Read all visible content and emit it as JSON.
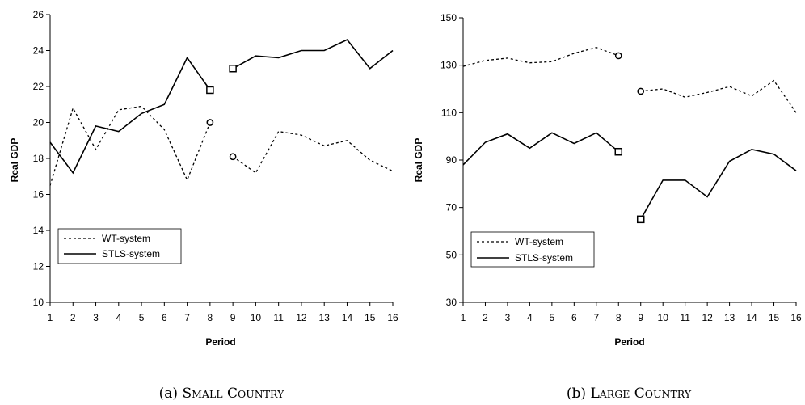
{
  "chart_data": [
    {
      "type": "line",
      "caption": {
        "prefix": "(a) ",
        "word1_first": "S",
        "word1_rest": "MALL",
        "word2_first": "C",
        "word2_rest": "OUNTRY"
      },
      "xlabel": "Period",
      "ylabel": "Real GDP",
      "x": [
        1,
        2,
        3,
        4,
        5,
        6,
        7,
        8,
        9,
        10,
        11,
        12,
        13,
        14,
        15,
        16
      ],
      "xlim": [
        1,
        16
      ],
      "ylim": [
        10,
        26
      ],
      "yticks": [
        10,
        12,
        14,
        16,
        18,
        20,
        22,
        24,
        26
      ],
      "legend": {
        "position": "bottom-left"
      },
      "series": [
        {
          "name": "WT-system",
          "style": "dashed",
          "segments": [
            {
              "x": [
                1,
                2,
                3,
                4,
                5,
                6,
                7,
                8
              ],
              "y": [
                16.5,
                20.8,
                18.5,
                20.7,
                20.9,
                19.6,
                16.8,
                20.0
              ]
            },
            {
              "x": [
                9,
                10,
                11,
                12,
                13,
                14,
                15,
                16
              ],
              "y": [
                18.1,
                17.2,
                19.5,
                19.3,
                18.7,
                19.0,
                17.9,
                17.3
              ]
            }
          ],
          "markers": [
            {
              "x": 8,
              "y": 20.0,
              "shape": "circle"
            },
            {
              "x": 9,
              "y": 18.1,
              "shape": "circle"
            }
          ]
        },
        {
          "name": "STLS-system",
          "style": "solid",
          "segments": [
            {
              "x": [
                1,
                2,
                3,
                4,
                5,
                6,
                7,
                8
              ],
              "y": [
                18.9,
                17.2,
                19.8,
                19.5,
                20.5,
                21.0,
                23.6,
                21.8
              ]
            },
            {
              "x": [
                9,
                10,
                11,
                12,
                13,
                14,
                15,
                16
              ],
              "y": [
                23.0,
                23.7,
                23.6,
                24.0,
                24.0,
                24.6,
                23.0,
                24.0
              ]
            }
          ],
          "markers": [
            {
              "x": 8,
              "y": 21.8,
              "shape": "square"
            },
            {
              "x": 9,
              "y": 23.0,
              "shape": "square"
            }
          ]
        }
      ]
    },
    {
      "type": "line",
      "caption": {
        "prefix": "(b) ",
        "word1_first": "L",
        "word1_rest": "ARGE",
        "word2_first": "C",
        "word2_rest": "OUNTRY"
      },
      "xlabel": "Period",
      "ylabel": "Real GDP",
      "x": [
        1,
        2,
        3,
        4,
        5,
        6,
        7,
        8,
        9,
        10,
        11,
        12,
        13,
        14,
        15,
        16
      ],
      "xlim": [
        1,
        16
      ],
      "ylim": [
        30,
        150
      ],
      "yticks": [
        30,
        50,
        70,
        90,
        110,
        130,
        150
      ],
      "legend": {
        "position": "bottom-left"
      },
      "series": [
        {
          "name": "WT-system",
          "style": "dashed",
          "segments": [
            {
              "x": [
                1,
                2,
                3,
                4,
                5,
                6,
                7,
                8
              ],
              "y": [
                129.5,
                132.0,
                133.0,
                131.0,
                131.5,
                135.0,
                137.5,
                134.0
              ]
            },
            {
              "x": [
                9,
                10,
                11,
                12,
                13,
                14,
                15,
                16
              ],
              "y": [
                119.0,
                120.0,
                116.5,
                118.5,
                121.0,
                117.0,
                123.5,
                110.0
              ]
            }
          ],
          "markers": [
            {
              "x": 8,
              "y": 134.0,
              "shape": "circle"
            },
            {
              "x": 9,
              "y": 119.0,
              "shape": "circle"
            }
          ]
        },
        {
          "name": "STLS-system",
          "style": "solid",
          "segments": [
            {
              "x": [
                1,
                2,
                3,
                4,
                5,
                6,
                7,
                8
              ],
              "y": [
                88.0,
                97.5,
                101.0,
                95.0,
                101.5,
                97.0,
                101.5,
                93.5
              ]
            },
            {
              "x": [
                9,
                10,
                11,
                12,
                13,
                14,
                15,
                16
              ],
              "y": [
                65.0,
                81.5,
                81.5,
                74.5,
                89.5,
                94.5,
                92.5,
                85.5
              ]
            }
          ],
          "markers": [
            {
              "x": 8,
              "y": 93.5,
              "shape": "square"
            },
            {
              "x": 9,
              "y": 65.0,
              "shape": "square"
            }
          ]
        }
      ]
    }
  ]
}
